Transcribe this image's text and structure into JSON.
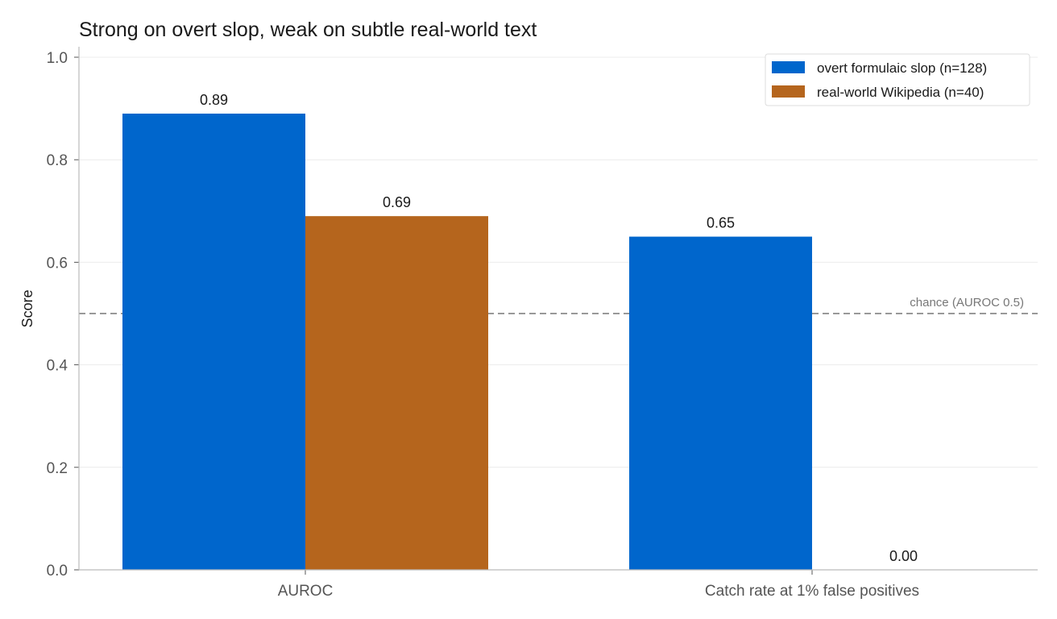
{
  "chart_data": {
    "type": "bar",
    "title": "Strong on overt slop, weak on subtle real-world text",
    "xlabel": "",
    "ylabel": "Score",
    "ylim": [
      0,
      1.0
    ],
    "yticks": [
      "0.0",
      "0.2",
      "0.4",
      "0.6",
      "0.8",
      "1.0"
    ],
    "categories": [
      "AUROC",
      "Catch rate at 1% false positives"
    ],
    "series": [
      {
        "name": "overt formulaic slop  (n=128)",
        "values": [
          0.89,
          0.65
        ],
        "labels": [
          "0.89",
          "0.65"
        ],
        "color": "#0066cc"
      },
      {
        "name": "real-world Wikipedia  (n=40)",
        "values": [
          0.69,
          0.0
        ],
        "labels": [
          "0.69",
          "0.00"
        ],
        "color": "#b5651d"
      }
    ],
    "reference_line": {
      "value": 0.5,
      "label": "chance (AUROC 0.5)",
      "color": "#999999",
      "style": "dashed"
    },
    "grid": "horizontal",
    "legend_position": "top-right"
  }
}
